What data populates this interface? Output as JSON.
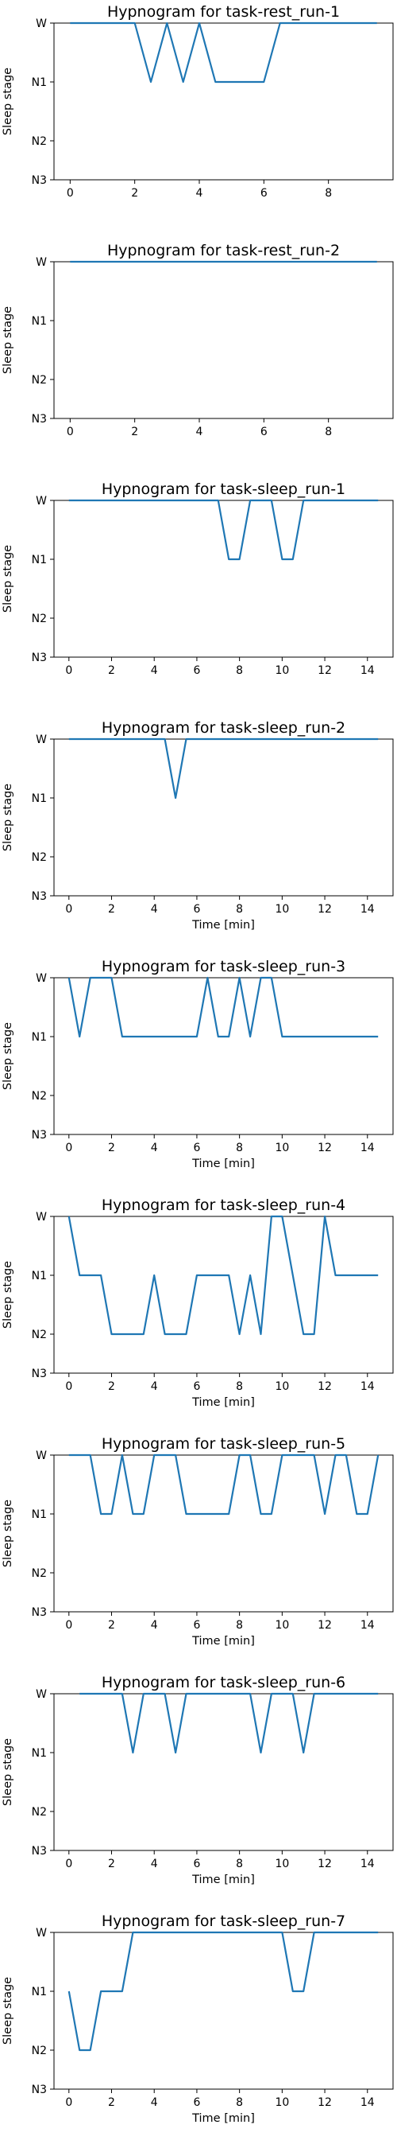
{
  "chart_data": [
    {
      "type": "line",
      "title": "Hypnogram for task-rest_run-1",
      "xlabel": "",
      "ylabel": "Sleep stage",
      "y_categories": [
        "W",
        "N1",
        "N2",
        "N3"
      ],
      "xticks": [
        0,
        2,
        4,
        6,
        8
      ],
      "xlim": [
        -0.5,
        10
      ],
      "series": [
        {
          "x": [
            0,
            0.5,
            1,
            1.5,
            2,
            2.5,
            3,
            3.5,
            4,
            4.5,
            5,
            5.5,
            6,
            6.5,
            7,
            7.5,
            8,
            8.5,
            9,
            9.5
          ],
          "y": [
            "W",
            "W",
            "W",
            "W",
            "W",
            "N1",
            "W",
            "N1",
            "W",
            "N1",
            "N1",
            "N1",
            "N1",
            "W",
            "W",
            "W",
            "W",
            "W",
            "W",
            "W"
          ]
        }
      ]
    },
    {
      "type": "line",
      "title": "Hypnogram for task-rest_run-2",
      "xlabel": "",
      "ylabel": "Sleep stage",
      "y_categories": [
        "W",
        "N1",
        "N2",
        "N3"
      ],
      "xticks": [
        0,
        2,
        4,
        6,
        8
      ],
      "xlim": [
        -0.5,
        10
      ],
      "series": [
        {
          "x": [
            0,
            9.5
          ],
          "y": [
            "W",
            "W"
          ]
        }
      ]
    },
    {
      "type": "line",
      "title": "Hypnogram for task-sleep_run-1",
      "xlabel": "",
      "ylabel": "Sleep stage",
      "y_categories": [
        "W",
        "N1",
        "N2",
        "N3"
      ],
      "xticks": [
        0,
        2,
        4,
        6,
        8,
        10,
        12,
        14
      ],
      "xlim": [
        -0.7,
        15.2
      ],
      "series": [
        {
          "x": [
            0,
            7,
            7.5,
            8,
            8.5,
            9,
            9.5,
            10,
            10.5,
            11,
            14.5
          ],
          "y": [
            "W",
            "W",
            "N1",
            "N1",
            "W",
            "W",
            "W",
            "N1",
            "N1",
            "W",
            "W"
          ]
        }
      ]
    },
    {
      "type": "line",
      "title": "Hypnogram for task-sleep_run-2",
      "xlabel": "Time [min]",
      "ylabel": "Sleep stage",
      "y_categories": [
        "W",
        "N1",
        "N2",
        "N3"
      ],
      "xticks": [
        0,
        2,
        4,
        6,
        8,
        10,
        12,
        14
      ],
      "xlim": [
        -0.7,
        15.2
      ],
      "series": [
        {
          "x": [
            0,
            4.5,
            5,
            5.5,
            14.5
          ],
          "y": [
            "W",
            "W",
            "N1",
            "W",
            "W"
          ]
        }
      ]
    },
    {
      "type": "line",
      "title": "Hypnogram for task-sleep_run-3",
      "xlabel": "Time [min]",
      "ylabel": "Sleep stage",
      "y_categories": [
        "W",
        "N1",
        "N2",
        "N3"
      ],
      "xticks": [
        0,
        2,
        4,
        6,
        8,
        10,
        12,
        14
      ],
      "xlim": [
        -0.7,
        15.2
      ],
      "series": [
        {
          "x": [
            0,
            0.5,
            1,
            1.5,
            2,
            2.5,
            6,
            6.5,
            7,
            7.5,
            8,
            8.5,
            9,
            9.5,
            10,
            14.5
          ],
          "y": [
            "W",
            "N1",
            "W",
            "W",
            "W",
            "N1",
            "N1",
            "W",
            "N1",
            "N1",
            "W",
            "N1",
            "W",
            "W",
            "N1",
            "N1"
          ]
        }
      ]
    },
    {
      "type": "line",
      "title": "Hypnogram for task-sleep_run-4",
      "xlabel": "Time [min]",
      "ylabel": "Sleep stage",
      "y_categories": [
        "W",
        "N1",
        "N2",
        "N3"
      ],
      "xticks": [
        0,
        2,
        4,
        6,
        8,
        10,
        12,
        14
      ],
      "xlim": [
        -0.7,
        15.2
      ],
      "series": [
        {
          "x": [
            0,
            0.5,
            1,
            1.5,
            2,
            2.5,
            3,
            3.5,
            4,
            4.5,
            5,
            5.5,
            6,
            6.5,
            7,
            7.5,
            8,
            8.5,
            9,
            9.5,
            10,
            10.5,
            11,
            11.5,
            12,
            12.5,
            13,
            13.5,
            14,
            14.5
          ],
          "y": [
            "W",
            "N1",
            "N1",
            "N1",
            "N2",
            "N2",
            "N2",
            "N2",
            "N1",
            "N2",
            "N2",
            "N2",
            "N1",
            "N1",
            "N1",
            "N1",
            "N2",
            "N1",
            "N2",
            "W",
            "W",
            "N1",
            "N2",
            "N2",
            "W",
            "N1",
            "N1",
            "N1",
            "N1",
            "N1"
          ]
        }
      ]
    },
    {
      "type": "line",
      "title": "Hypnogram for task-sleep_run-5",
      "xlabel": "Time [min]",
      "ylabel": "Sleep stage",
      "y_categories": [
        "W",
        "N1",
        "N2",
        "N3"
      ],
      "xticks": [
        0,
        2,
        4,
        6,
        8,
        10,
        12,
        14
      ],
      "xlim": [
        -0.7,
        15.2
      ],
      "series": [
        {
          "x": [
            0,
            1,
            1.5,
            2,
            2.5,
            3,
            3.5,
            4,
            4.5,
            5,
            5.5,
            6,
            6.5,
            7,
            7.5,
            8,
            8.5,
            9,
            9.5,
            10,
            10.5,
            11,
            11.5,
            12,
            12.5,
            13,
            13.5,
            14,
            14.5
          ],
          "y": [
            "W",
            "W",
            "N1",
            "N1",
            "W",
            "N1",
            "N1",
            "W",
            "W",
            "W",
            "N1",
            "N1",
            "N1",
            "N1",
            "N1",
            "W",
            "W",
            "N1",
            "N1",
            "W",
            "W",
            "W",
            "W",
            "N1",
            "W",
            "W",
            "N1",
            "N1",
            "W"
          ]
        }
      ]
    },
    {
      "type": "line",
      "title": "Hypnogram for task-sleep_run-6",
      "xlabel": "Time [min]",
      "ylabel": "Sleep stage",
      "y_categories": [
        "W",
        "N1",
        "N2",
        "N3"
      ],
      "xticks": [
        0,
        2,
        4,
        6,
        8,
        10,
        12,
        14
      ],
      "xlim": [
        -0.7,
        15.2
      ],
      "series": [
        {
          "x": [
            0.5,
            2.5,
            3,
            3.5,
            4.5,
            5,
            5.5,
            8.5,
            9,
            9.5,
            10.5,
            11,
            11.5,
            14.5
          ],
          "y": [
            "W",
            "W",
            "N1",
            "W",
            "W",
            "N1",
            "W",
            "W",
            "N1",
            "W",
            "W",
            "N1",
            "W",
            "W"
          ]
        }
      ]
    },
    {
      "type": "line",
      "title": "Hypnogram for task-sleep_run-7",
      "xlabel": "Time [min]",
      "ylabel": "Sleep stage",
      "y_categories": [
        "W",
        "N1",
        "N2",
        "N3"
      ],
      "xticks": [
        0,
        2,
        4,
        6,
        8,
        10,
        12,
        14
      ],
      "xlim": [
        -0.7,
        15.2
      ],
      "series": [
        {
          "x": [
            0,
            0.5,
            1,
            1.5,
            2,
            2.5,
            3,
            10,
            10.5,
            11,
            11.5,
            14.5
          ],
          "y": [
            "N1",
            "N2",
            "N2",
            "N1",
            "N1",
            "N1",
            "W",
            "W",
            "N1",
            "N1",
            "W",
            "W"
          ]
        }
      ]
    }
  ]
}
